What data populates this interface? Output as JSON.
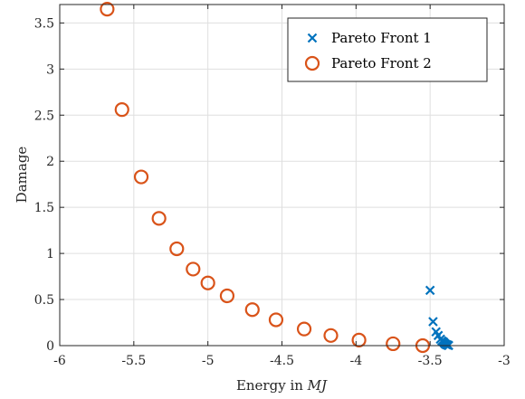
{
  "chart_data": {
    "type": "scatter",
    "xlabel_prefix": "Energy in ",
    "xlabel_unit": "MJ",
    "ylabel": "Damage",
    "xlim": [
      -6,
      -3
    ],
    "ylim": [
      0,
      3.7
    ],
    "xticks": [
      -6,
      -5.5,
      -5,
      -4.5,
      -4,
      -3.5,
      -3
    ],
    "xtick_labels": [
      "-6",
      "-5.5",
      "-5",
      "-4.5",
      "-4",
      "-3.5",
      "-3"
    ],
    "yticks": [
      0,
      0.5,
      1,
      1.5,
      2,
      2.5,
      3,
      3.5
    ],
    "ytick_labels": [
      "0",
      "0.5",
      "1",
      "1.5",
      "2",
      "2.5",
      "3",
      "3.5"
    ],
    "grid": true,
    "legend_position": "top-right",
    "series": [
      {
        "name": "Pareto Front 1",
        "marker": "x",
        "color": "#0072BD",
        "x": [
          -3.5,
          -3.48,
          -3.46,
          -3.445,
          -3.43,
          -3.42,
          -3.41,
          -3.405,
          -3.4,
          -3.395,
          -3.39,
          -3.385,
          -3.38,
          -3.375
        ],
        "y": [
          0.6,
          0.26,
          0.15,
          0.11,
          0.07,
          0.05,
          0.04,
          0.03,
          0.02,
          0.015,
          0.01,
          0.008,
          0.005,
          0.002
        ]
      },
      {
        "name": "Pareto Front 2",
        "marker": "o",
        "color": "#D95319",
        "x": [
          -5.68,
          -5.58,
          -5.45,
          -5.33,
          -5.21,
          -5.1,
          -5.0,
          -4.87,
          -4.7,
          -4.54,
          -4.35,
          -4.17,
          -3.98,
          -3.75,
          -3.55
        ],
        "y": [
          3.65,
          2.56,
          1.83,
          1.38,
          1.05,
          0.83,
          0.68,
          0.54,
          0.39,
          0.28,
          0.18,
          0.11,
          0.06,
          0.02,
          0.0
        ]
      }
    ]
  }
}
